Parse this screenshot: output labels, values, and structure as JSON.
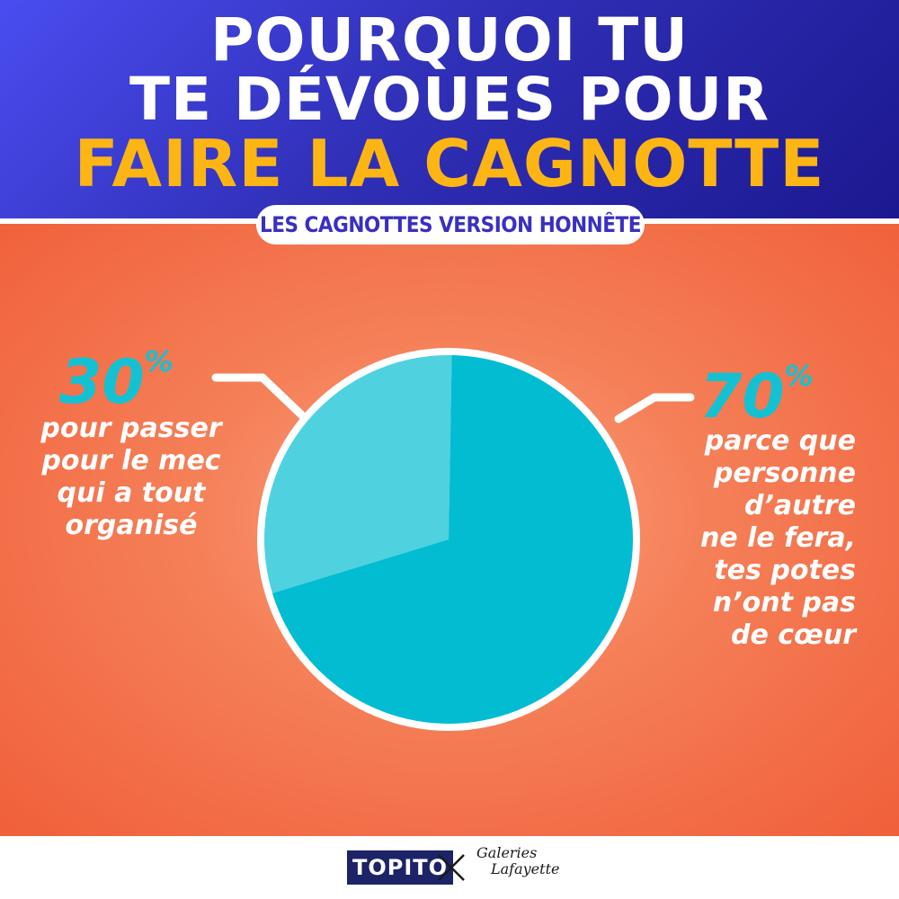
{
  "header": {
    "title_line1": "POURQUOI TU",
    "title_line2": "TE DÉVOUES POUR",
    "title_line3": "FAIRE LA CAGNOTTE",
    "subtitle": "LES CAGNOTTES VERSION HONNÊTE"
  },
  "chart_data": {
    "type": "pie",
    "slices": [
      {
        "label": "pour passer pour le mec qui a tout organisé",
        "value": 30,
        "display": "30",
        "unit": "%",
        "color": "#4fd1e0"
      },
      {
        "label": "parce que personne d'autre ne le fera, tes potes n'ont pas de cœur",
        "value": 70,
        "display": "70",
        "unit": "%",
        "color": "#02bcd2"
      }
    ]
  },
  "annotations": {
    "left_lines": [
      "pour passer",
      "pour le mec",
      "qui a tout",
      "organisé"
    ],
    "right_lines": [
      "parce que",
      "personne",
      "d’autre",
      "ne le fera,",
      "tes potes",
      "n’ont pas",
      "de cœur"
    ]
  },
  "footer": {
    "brand1": "TOPITO",
    "brand2_line1": "Galeries",
    "brand2_line2": "Lafayette"
  },
  "colors": {
    "header_bg": "#3a3cd0",
    "title_accent": "#fdb514",
    "background": "#f05f3a",
    "percent": "#14c1d3"
  }
}
